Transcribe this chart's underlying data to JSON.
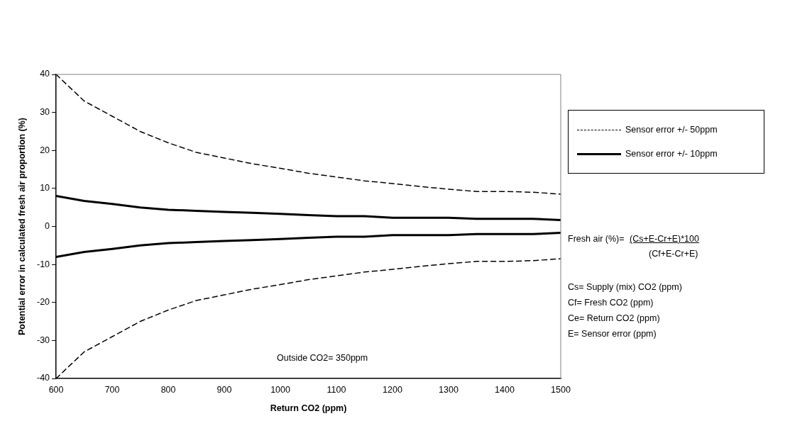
{
  "chart_data": {
    "type": "line",
    "xlabel": "Return CO2 (ppm)",
    "ylabel": "Potential error in calculated fresh air proportion (%)",
    "x": [
      600,
      650,
      700,
      750,
      800,
      850,
      900,
      950,
      1000,
      1050,
      1100,
      1150,
      1200,
      1250,
      1300,
      1350,
      1400,
      1450,
      1500
    ],
    "xlim": [
      600,
      1500
    ],
    "xticks": [
      600,
      700,
      800,
      900,
      1000,
      1100,
      1200,
      1300,
      1400,
      1500
    ],
    "ylim": [
      -40,
      40
    ],
    "yticks": [
      -40,
      -30,
      -20,
      -10,
      0,
      10,
      20,
      30,
      40
    ],
    "grid": false,
    "marker": "none",
    "legend": "top right",
    "series": [
      {
        "name": "Sensor error +/- 50ppm",
        "color": "#000000",
        "line_style": "dashed",
        "values": [
          40,
          33,
          29,
          25,
          22,
          19.5,
          18,
          16.5,
          15.3,
          14,
          13,
          12,
          11.3,
          10.5,
          9.8,
          9.2,
          9.2,
          9,
          8.5
        ]
      },
      {
        "name": "Sensor error +/- 10ppm",
        "color": "#000000",
        "line_style": "solid",
        "values": [
          8,
          6.7,
          5.9,
          5,
          4.4,
          4.1,
          3.8,
          3.6,
          3.3,
          3,
          2.7,
          2.7,
          2.3,
          2.3,
          2.3,
          2,
          2,
          2,
          1.7
        ]
      },
      {
        "color": "#000000",
        "line_style": "solid",
        "values": [
          -8,
          -6.7,
          -5.9,
          -5,
          -4.4,
          -4.1,
          -3.8,
          -3.6,
          -3.3,
          -3,
          -2.7,
          -2.7,
          -2.3,
          -2.3,
          -2.3,
          -2,
          -2,
          -2,
          -1.7
        ]
      },
      {
        "color": "#000000",
        "line_style": "dashed",
        "values": [
          -40,
          -33,
          -29,
          -25,
          -22,
          -19.5,
          -18,
          -16.5,
          -15.3,
          -14,
          -13,
          -12,
          -11.3,
          -10.5,
          -9.8,
          -9.2,
          -9.2,
          -9,
          -8.5
        ]
      }
    ],
    "annotations": [
      "Outside CO2= 350ppm",
      "Fresh air (%)=",
      "(Cs+E-Cr+E)*100",
      "(Cf+E-Cr+E)",
      "Cs= Supply (mix) CO2 (ppm)",
      "Cf= Fresh CO2 (ppm)",
      "Ce= Return CO2 (ppm)",
      "E= Sensor error (ppm)"
    ]
  }
}
